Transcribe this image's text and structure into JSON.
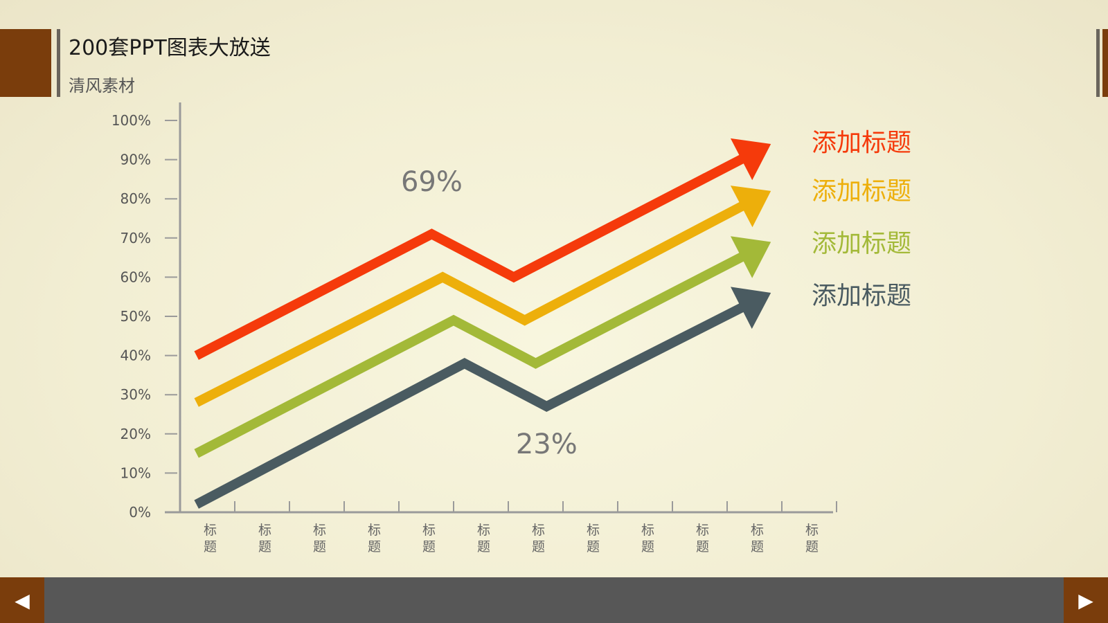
{
  "header": {
    "title": "200套PPT图表大放送",
    "subtitle": "清风素材"
  },
  "nav": {
    "prev_icon": "◀",
    "next_icon": "▶"
  },
  "chart_data": {
    "type": "line",
    "title": "200套PPT图表大放送",
    "subtitle": "清风素材",
    "categories": [
      "标题",
      "标题",
      "标题",
      "标题",
      "标题",
      "标题",
      "标题",
      "标题",
      "标题",
      "标题",
      "标题",
      "标题"
    ],
    "ylim": [
      0,
      100
    ],
    "yticks": [
      "0%",
      "10%",
      "20%",
      "30%",
      "40%",
      "50%",
      "60%",
      "70%",
      "80%",
      "90%",
      "100%"
    ],
    "grid": false,
    "legend_position": "right",
    "series": [
      {
        "name": "添加标题",
        "color": "#f53a0b",
        "points": [
          [
            0.3,
            40
          ],
          [
            4.6,
            71
          ],
          [
            6.1,
            60
          ],
          [
            10.8,
            94
          ]
        ]
      },
      {
        "name": "添加标题",
        "color": "#edaf0b",
        "points": [
          [
            0.3,
            28
          ],
          [
            4.8,
            60
          ],
          [
            6.3,
            49
          ],
          [
            10.8,
            82
          ]
        ]
      },
      {
        "name": "添加标题",
        "color": "#a3b938",
        "points": [
          [
            0.3,
            15
          ],
          [
            5.0,
            49
          ],
          [
            6.5,
            38
          ],
          [
            10.8,
            69
          ]
        ]
      },
      {
        "name": "添加标题",
        "color": "#4a5b61",
        "points": [
          [
            0.3,
            2
          ],
          [
            5.2,
            38
          ],
          [
            6.7,
            27
          ],
          [
            10.8,
            56
          ]
        ]
      }
    ],
    "annotations": [
      {
        "text": "69%",
        "x": 4.6,
        "y": 82,
        "color": "#777"
      },
      {
        "text": "23%",
        "x": 6.7,
        "y": 15,
        "color": "#777"
      }
    ]
  }
}
